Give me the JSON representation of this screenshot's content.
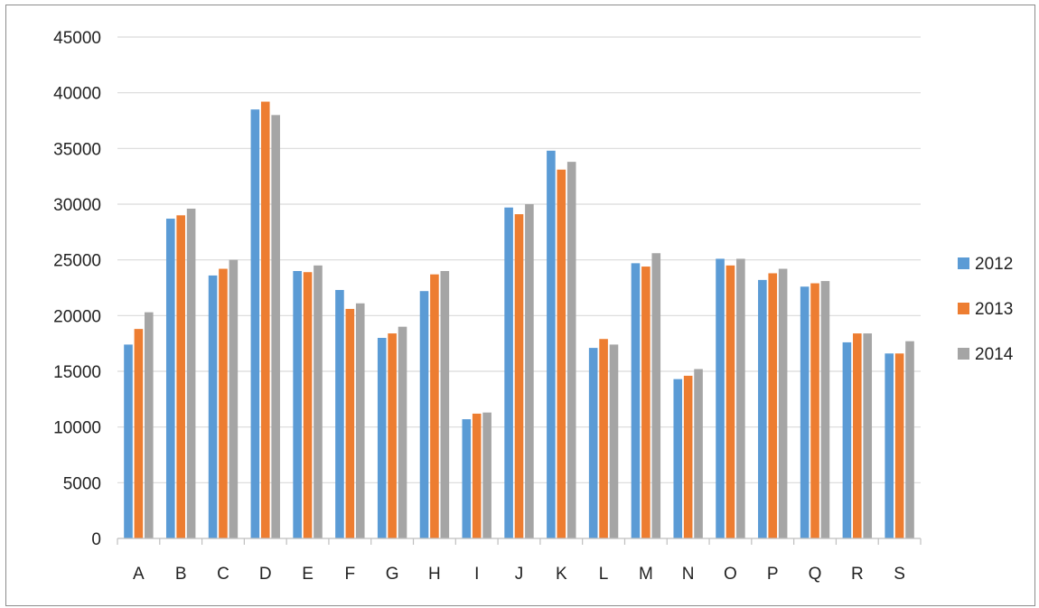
{
  "chart_data": {
    "type": "bar",
    "title": "",
    "xlabel": "",
    "ylabel": "",
    "categories": [
      "A",
      "B",
      "C",
      "D",
      "E",
      "F",
      "G",
      "H",
      "I",
      "J",
      "K",
      "L",
      "M",
      "N",
      "O",
      "P",
      "Q",
      "R",
      "S"
    ],
    "series": [
      {
        "name": "2012",
        "color": "#5b9bd5",
        "values": [
          17400,
          28700,
          23600,
          38500,
          24000,
          22300,
          18000,
          22200,
          10700,
          29700,
          34800,
          17100,
          24700,
          14300,
          25100,
          23200,
          22600,
          17600,
          16600
        ]
      },
      {
        "name": "2013",
        "color": "#ed7d31",
        "values": [
          18800,
          29000,
          24200,
          39200,
          23900,
          20600,
          18400,
          23700,
          11200,
          29100,
          33100,
          17900,
          24400,
          14600,
          24500,
          23800,
          22900,
          18400,
          16600
        ]
      },
      {
        "name": "2014",
        "color": "#a5a5a5",
        "values": [
          20300,
          29600,
          25000,
          38000,
          24500,
          21100,
          19000,
          24000,
          11300,
          30000,
          33800,
          17400,
          25600,
          15200,
          25100,
          24200,
          23100,
          18400,
          17700
        ]
      }
    ],
    "ylim": [
      0,
      45000
    ],
    "yticks": [
      0,
      5000,
      10000,
      15000,
      20000,
      25000,
      30000,
      35000,
      40000,
      45000
    ],
    "grid": true,
    "gridline_color": "#d9d9d9",
    "axis_color": "#bfbfbf",
    "legend_position": "right"
  }
}
